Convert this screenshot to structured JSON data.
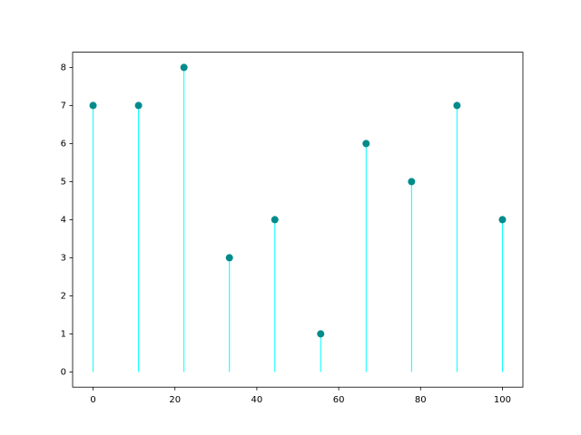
{
  "chart_data": {
    "type": "stem",
    "x": [
      0,
      11.1,
      22.2,
      33.3,
      44.4,
      55.6,
      66.7,
      77.8,
      88.9,
      100
    ],
    "series": [
      {
        "values": [
          7,
          7,
          8,
          3,
          4,
          1,
          6,
          5,
          7,
          4
        ],
        "color": "#008b8b",
        "stem_color": "#00ffff"
      }
    ],
    "xlim": [
      -5,
      105
    ],
    "ylim": [
      -0.4,
      8.4
    ],
    "xticks": [
      0,
      20,
      40,
      60,
      80,
      100
    ],
    "yticks": [
      0,
      1,
      2,
      3,
      4,
      5,
      6,
      7,
      8
    ]
  }
}
